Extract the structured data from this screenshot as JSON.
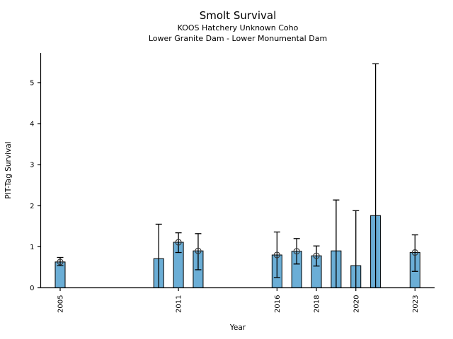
{
  "chart_data": {
    "type": "bar",
    "title": "Smolt Survival",
    "subtitle1": "KOOS Hatchery Unknown Coho",
    "subtitle2": "Lower Granite Dam - Lower Monumental Dam",
    "xlabel": "Year",
    "ylabel": "PIT-Tag Survival",
    "x_tick_labels": [
      "2005",
      "2011",
      "2016",
      "2018",
      "2020",
      "2023"
    ],
    "x_tick_years": [
      2005,
      2011,
      2016,
      2018,
      2020,
      2023
    ],
    "y_tick_labels": [
      "0",
      "1",
      "2",
      "3",
      "4",
      "5"
    ],
    "y_ticks": [
      0,
      1,
      2,
      3,
      4,
      5
    ],
    "xlim": [
      2004,
      2024
    ],
    "ylim": [
      0,
      5.72
    ],
    "grid": false,
    "legend": "none",
    "colors": {
      "bar_fill": "#6baed6",
      "bar_edge": "#000000",
      "errorbar": "#000000",
      "marker_edge": "#3a3a3a"
    },
    "points": [
      {
        "year": 2005,
        "value": 0.63,
        "ci_low": 0.54,
        "ci_high": 0.74,
        "marker": true
      },
      {
        "year": 2010,
        "value": 0.71,
        "ci_low": 0.0,
        "ci_high": 1.55,
        "marker": false
      },
      {
        "year": 2011,
        "value": 1.11,
        "ci_low": 0.86,
        "ci_high": 1.34,
        "marker": true
      },
      {
        "year": 2012,
        "value": 0.9,
        "ci_low": 0.44,
        "ci_high": 1.32,
        "marker": true
      },
      {
        "year": 2016,
        "value": 0.8,
        "ci_low": 0.25,
        "ci_high": 1.36,
        "marker": true
      },
      {
        "year": 2017,
        "value": 0.89,
        "ci_low": 0.58,
        "ci_high": 1.2,
        "marker": true
      },
      {
        "year": 2018,
        "value": 0.78,
        "ci_low": 0.53,
        "ci_high": 1.02,
        "marker": true
      },
      {
        "year": 2019,
        "value": 0.9,
        "ci_low": 0.0,
        "ci_high": 2.14,
        "marker": false
      },
      {
        "year": 2020,
        "value": 0.54,
        "ci_low": 0.0,
        "ci_high": 1.88,
        "marker": false
      },
      {
        "year": 2021,
        "value": 1.76,
        "ci_low": 0.0,
        "ci_high": 5.46,
        "marker": false
      },
      {
        "year": 2023,
        "value": 0.86,
        "ci_low": 0.4,
        "ci_high": 1.29,
        "marker": true
      }
    ]
  }
}
